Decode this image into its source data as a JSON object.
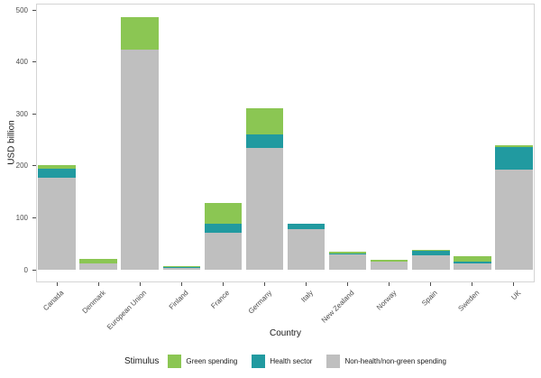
{
  "chart_data": {
    "type": "bar",
    "stacked": true,
    "title": "",
    "xlabel": "Country",
    "ylabel": "USD billion",
    "legend_title": "Stimulus",
    "legend_position": "bottom",
    "grid": false,
    "ylim": [
      0,
      500
    ],
    "yticks": [
      0,
      100,
      200,
      300,
      400,
      500
    ],
    "categories": [
      "Canada",
      "Denmark",
      "European Union",
      "Finland",
      "France",
      "Germany",
      "Italy",
      "New Zealand",
      "Norway",
      "Spain",
      "Sweden",
      "UK"
    ],
    "series": [
      {
        "name": "Green spending",
        "color": "#8bc653",
        "values": [
          7,
          7,
          62,
          1.5,
          40,
          50,
          0,
          3,
          2.5,
          1.5,
          10,
          4
        ]
      },
      {
        "name": "Health sector",
        "color": "#219aa0",
        "values": [
          17,
          0,
          0,
          3,
          17,
          26,
          10,
          1,
          0,
          9.5,
          3,
          44
        ]
      },
      {
        "name": "Non-health/non-green spending",
        "color": "#bfbfbf",
        "values": [
          177,
          13,
          424,
          3,
          71,
          235,
          78,
          31,
          16,
          27,
          13,
          192
        ]
      }
    ],
    "stack_order_bottom_to_top": [
      "Non-health/non-green spending",
      "Health sector",
      "Green spending"
    ],
    "totals": [
      201,
      20,
      486,
      7.5,
      128,
      311,
      88,
      35,
      18.5,
      38,
      26,
      240
    ]
  },
  "colors": {
    "axis_text": "#4d4d4d",
    "axis_title": "#1a1a1a",
    "panel_border": "#d4d4d4",
    "tick": "#4d4d4d",
    "background": "#ffffff"
  }
}
